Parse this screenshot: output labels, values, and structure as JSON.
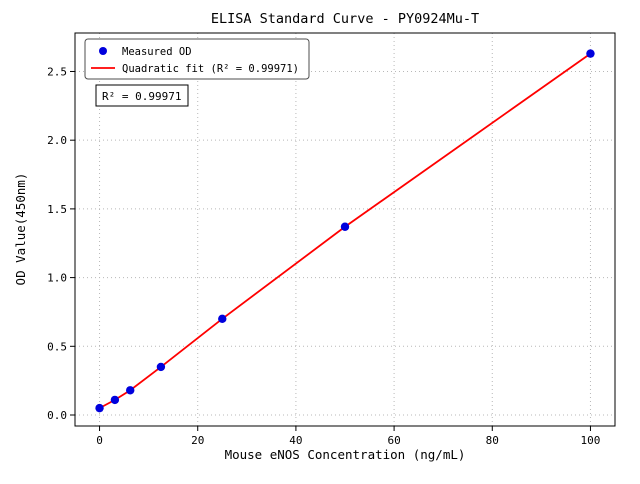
{
  "chart_data": {
    "type": "scatter",
    "title": "ELISA Standard Curve - PY0924Mu-T",
    "xlabel": "Mouse eNOS Concentration (ng/mL)",
    "ylabel": "OD Value(450nm)",
    "xlim": [
      -5,
      105
    ],
    "ylim": [
      -0.08,
      2.78
    ],
    "xticks": {
      "values": [
        0,
        20,
        40,
        60,
        80,
        100
      ],
      "labels": [
        "0",
        "20",
        "40",
        "60",
        "80",
        "100"
      ]
    },
    "yticks": {
      "values": [
        0,
        0.5,
        1.0,
        1.5,
        2.0,
        2.5
      ],
      "labels": [
        "0.0",
        "0.5",
        "1.0",
        "1.5",
        "2.0",
        "2.5"
      ]
    },
    "grid": true,
    "grid_style": {
      "color": "#b8b8b8",
      "dash": "1 3"
    },
    "series": [
      {
        "name": "Measured OD",
        "type": "scatter",
        "color": "#0000dd",
        "x": [
          0,
          3.125,
          6.25,
          12.5,
          25,
          50,
          100
        ],
        "y": [
          0.05,
          0.11,
          0.18,
          0.35,
          0.7,
          1.37,
          2.63
        ]
      },
      {
        "name": "Quadratic fit (R² = 0.99971)",
        "type": "line",
        "color": "#ff0000",
        "x": [
          0,
          3.125,
          6.25,
          12.5,
          25,
          50,
          100
        ],
        "y": [
          0.05,
          0.11,
          0.18,
          0.35,
          0.7,
          1.37,
          2.63
        ]
      }
    ],
    "legend": {
      "position": "upper-left"
    },
    "annotation": "R² = 0.99971"
  }
}
